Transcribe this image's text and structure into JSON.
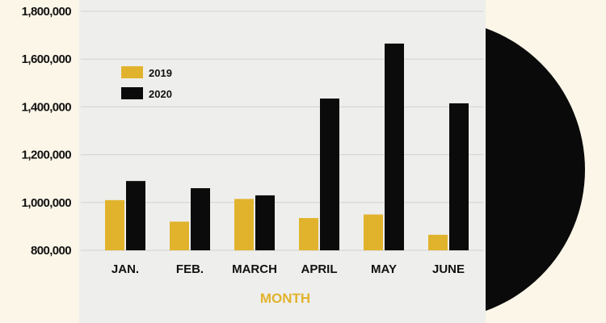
{
  "chart_data": {
    "type": "bar",
    "categories": [
      "JAN.",
      "FEB.",
      "MARCH",
      "APRIL",
      "MAY",
      "JUNE"
    ],
    "series": [
      {
        "name": "2019",
        "values": [
          1010000,
          920000,
          1015000,
          935000,
          950000,
          865000
        ]
      },
      {
        "name": "2020",
        "values": [
          1090000,
          1060000,
          1030000,
          1435000,
          1665000,
          1415000
        ]
      }
    ],
    "yticks": [
      "800,000",
      "1,000,000",
      "1,200,000",
      "1,400,000",
      "1,600,000",
      "1,800,000"
    ],
    "ylim": [
      800000,
      1800000
    ],
    "xlabel": "MONTH",
    "ylabel": "",
    "title": "",
    "grid": true,
    "legend_position": "top-left",
    "colors": {
      "series_2019": "#e1b32d",
      "series_2020": "#0b0b0b",
      "xlabel": "#e1b32d",
      "sleeve": "#eeeeec",
      "background": "#fbf6e8",
      "record": "#0a0a0a"
    }
  }
}
